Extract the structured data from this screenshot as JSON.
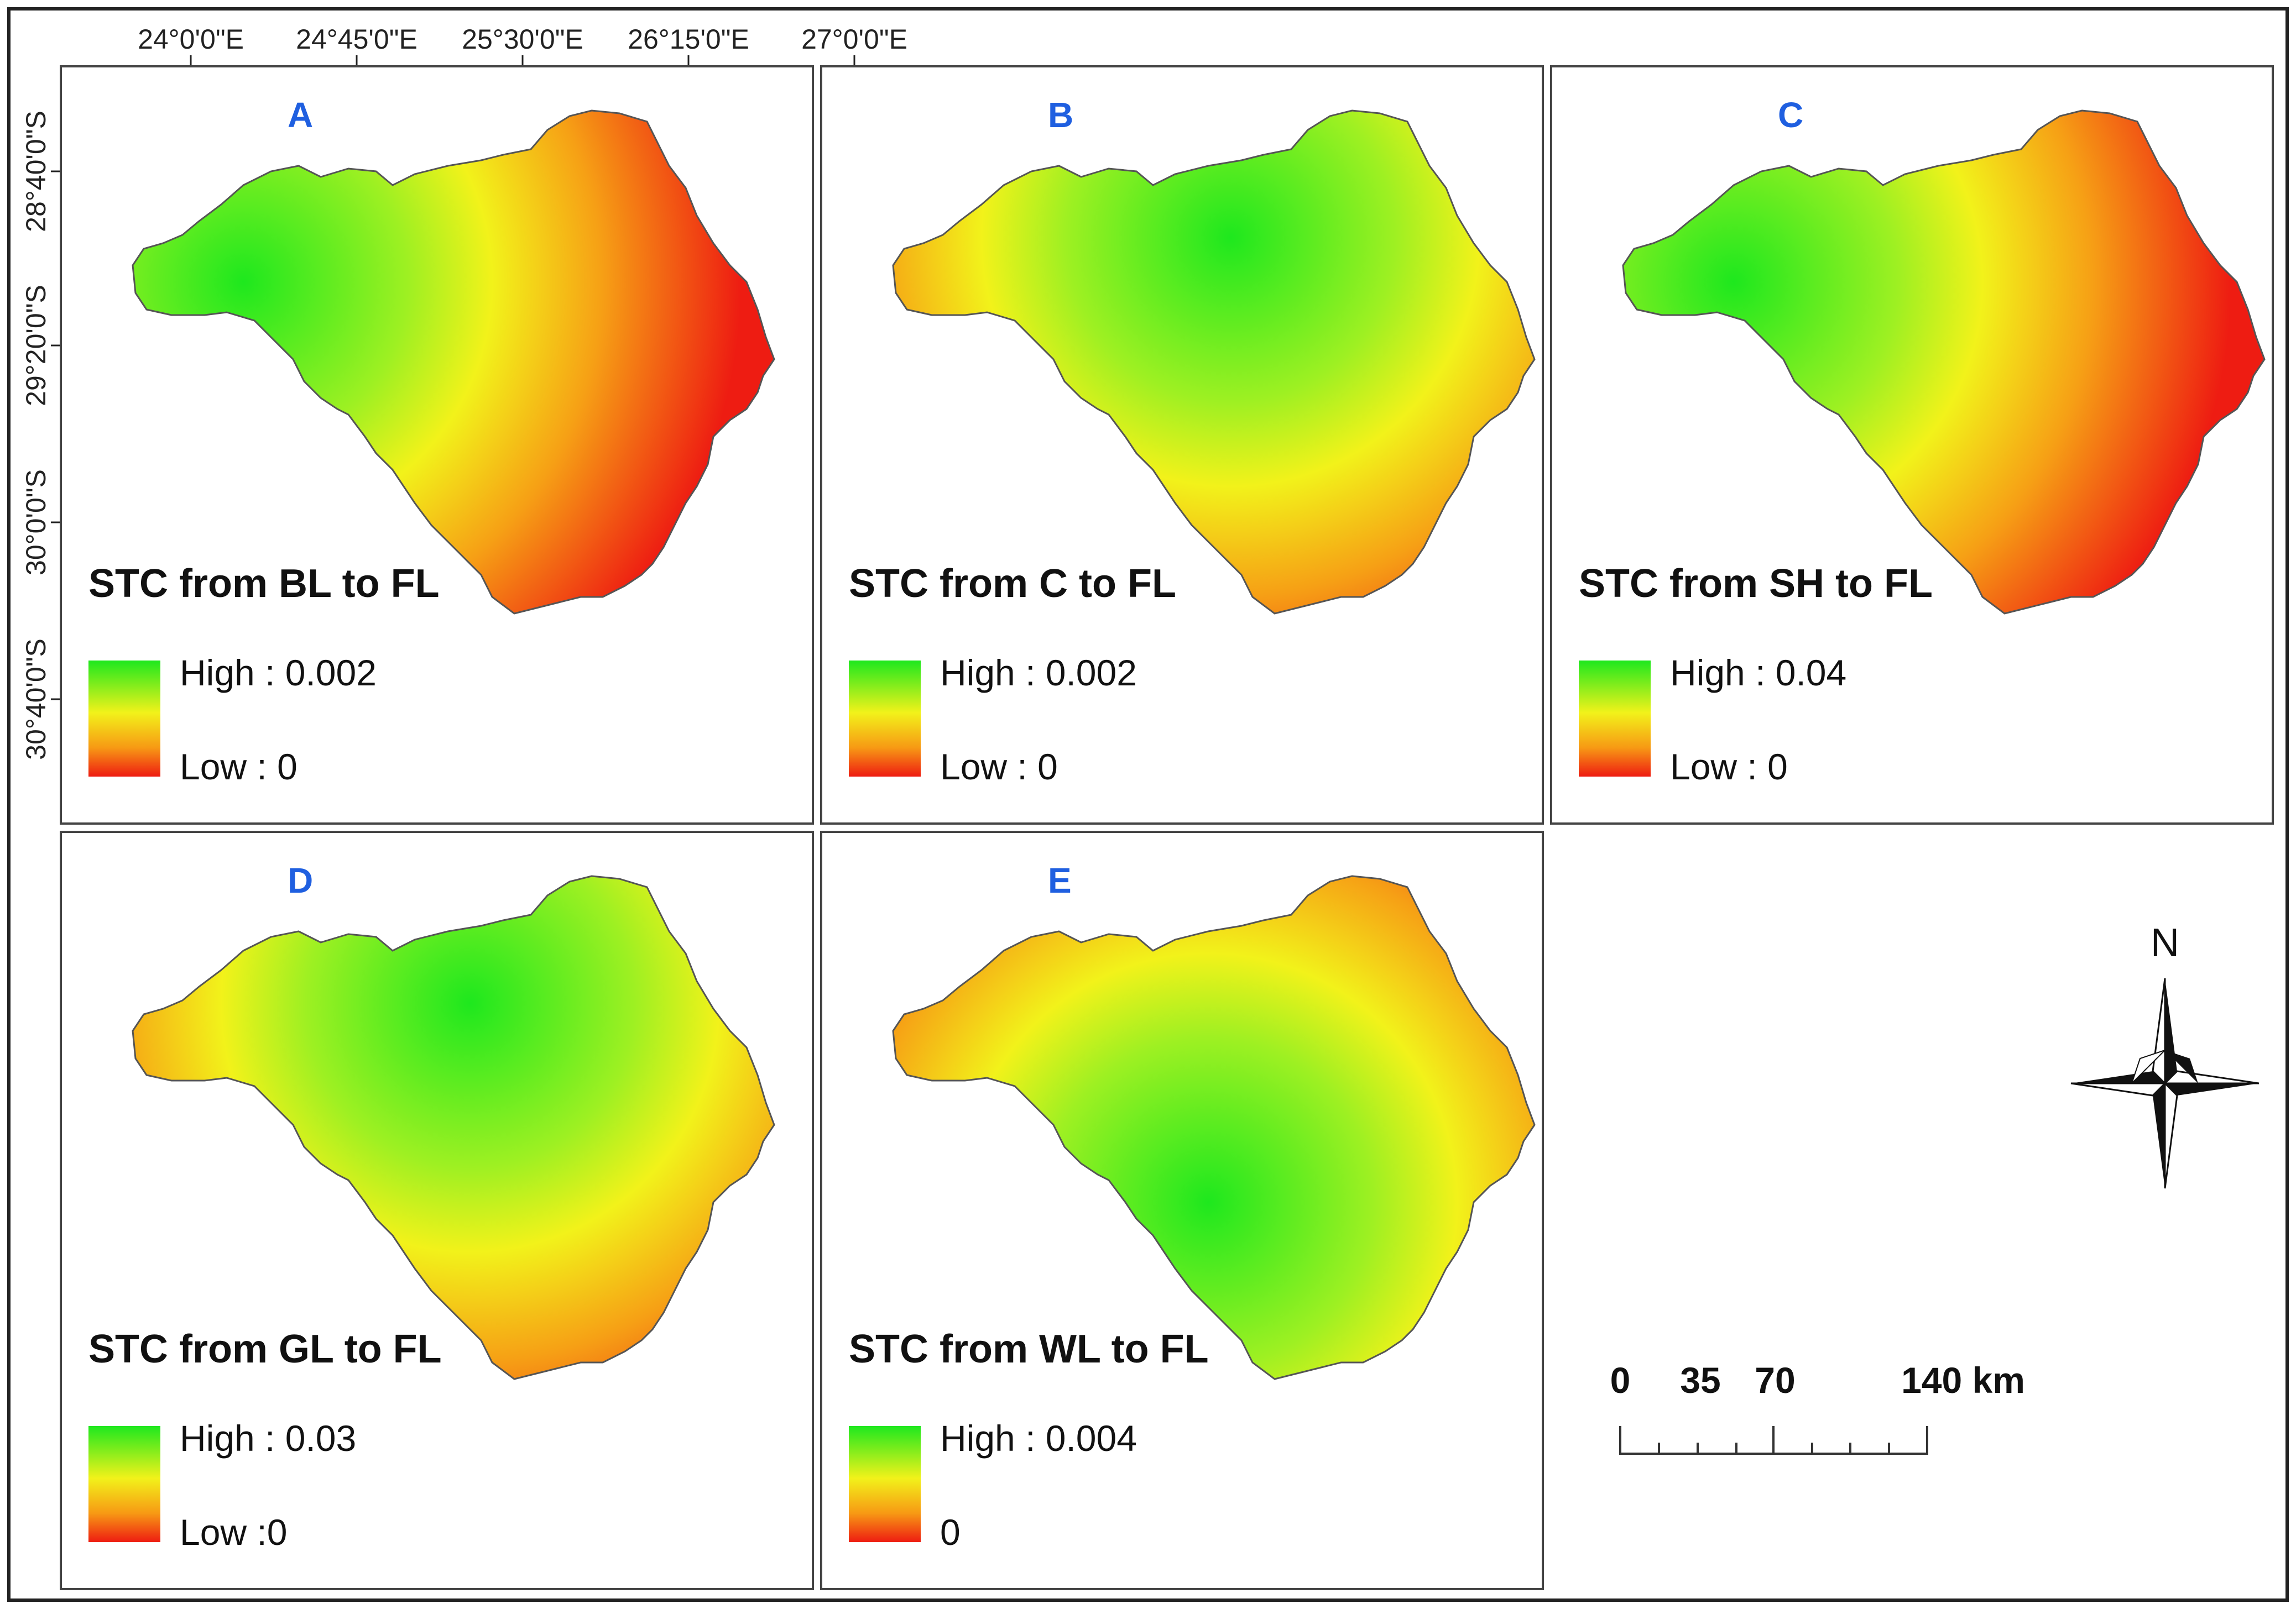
{
  "graticule": {
    "longitudes": [
      "24°0'0\"E",
      "24°45'0\"E",
      "25°30'0\"E",
      "26°15'0\"E",
      "27°0'0\"E"
    ],
    "latitudes": [
      "28°40'0\"S",
      "29°20'0\"S",
      "30°0'0\"S",
      "30°40'0\"S"
    ]
  },
  "panels": [
    {
      "letter": "A",
      "title": "STC from BL to FL",
      "high": "High : 0.002",
      "low": "Low : 0",
      "hotspot": "west"
    },
    {
      "letter": "B",
      "title": "STC  from C to FL",
      "high": "High : 0.002",
      "low": "Low : 0",
      "hotspot": "center"
    },
    {
      "letter": "C",
      "title": "STC from SH to FL",
      "high": "High : 0.04",
      "low": "Low : 0",
      "hotspot": "west"
    },
    {
      "letter": "D",
      "title": "STC from GL to FL",
      "high": "High : 0.03",
      "low": "Low :0",
      "hotspot": "center"
    },
    {
      "letter": "E",
      "title": "STC from WL to FL",
      "high": "High : 0.004",
      "low": "0",
      "hotspot": "south"
    }
  ],
  "north_arrow": {
    "label": "N",
    "icon": "compass-rose-icon"
  },
  "scale_bar": {
    "ticks": [
      "0",
      "35",
      "70",
      "140 km"
    ]
  },
  "colors": {
    "high": "#1ee81e",
    "mid": "#f2f21a",
    "low": "#ee1c12",
    "panel_letter": "#1f5fe0"
  }
}
